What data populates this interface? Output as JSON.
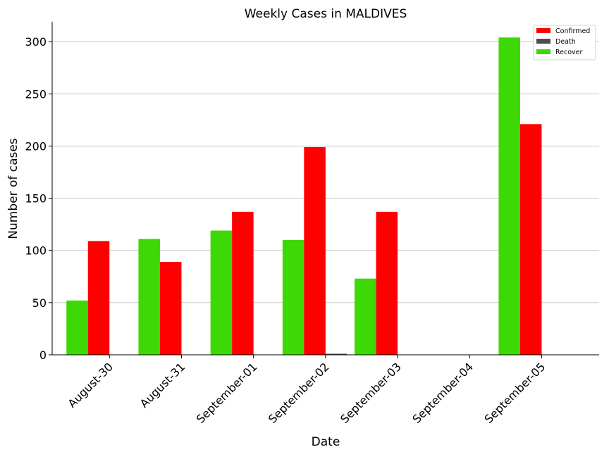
{
  "chart_data": {
    "type": "bar",
    "title": "Weekly Cases in MALDIVES",
    "xlabel": "Date",
    "ylabel": "Number of cases",
    "categories": [
      "August-30",
      "August-31",
      "September-01",
      "September-02",
      "September-03",
      "September-04",
      "September-05"
    ],
    "series": [
      {
        "name": "Recover",
        "color": "#3dd805",
        "values": [
          52,
          111,
          119,
          110,
          73,
          0,
          304
        ]
      },
      {
        "name": "Confirmed",
        "color": "#ff0000",
        "values": [
          109,
          89,
          137,
          199,
          137,
          0,
          221
        ]
      },
      {
        "name": "Death",
        "color": "#4d4d4d",
        "values": [
          0,
          0,
          0,
          1,
          0,
          0,
          0
        ]
      }
    ],
    "legend_order": [
      "Confirmed",
      "Death",
      "Recover"
    ],
    "legend_position": "top-right",
    "ylim": [
      0,
      319
    ],
    "yticks": [
      0,
      50,
      100,
      150,
      200,
      250,
      300
    ],
    "grid": "horizontal"
  }
}
